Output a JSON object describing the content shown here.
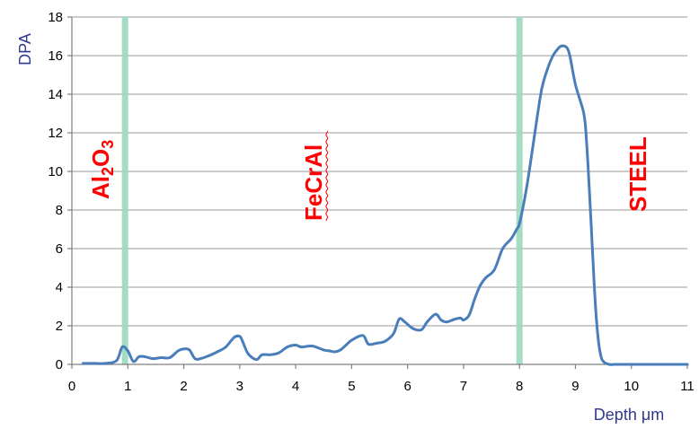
{
  "chart_data": {
    "type": "line",
    "xlabel": "Depth μm",
    "ylabel": "DPA",
    "xlim": [
      0,
      11
    ],
    "ylim": [
      0,
      18
    ],
    "x_ticks": [
      0,
      1,
      2,
      3,
      4,
      5,
      6,
      7,
      8,
      9,
      10,
      11
    ],
    "y_ticks": [
      0,
      2,
      4,
      6,
      8,
      10,
      12,
      14,
      16,
      18
    ],
    "grid": "horizontal",
    "line_color": "#4a7ebb",
    "separator_color": "#9fdcc0",
    "region_label_color": "#ff0000",
    "region_boundaries": [
      0.95,
      8.0
    ],
    "region_labels": [
      {
        "text": "Al",
        "sub": "2",
        "text2": "O",
        "sub2": "3",
        "x": 0.5
      },
      {
        "text": "FeCrAl",
        "x": 4.3
      },
      {
        "text": "STEEL",
        "x": 10.1
      }
    ],
    "series": [
      {
        "x": [
          0.2,
          0.4,
          0.6,
          0.8,
          0.9,
          1.0,
          1.1,
          1.2,
          1.3,
          1.45,
          1.6,
          1.75,
          1.9,
          2.0,
          2.1,
          2.2,
          2.3,
          2.45,
          2.6,
          2.75,
          2.9,
          3.0,
          3.05,
          3.15,
          3.3,
          3.4,
          3.55,
          3.7,
          3.85,
          4.0,
          4.1,
          4.3,
          4.5,
          4.6,
          4.7,
          4.8,
          4.9,
          5.0,
          5.2,
          5.3,
          5.45,
          5.6,
          5.75,
          5.85,
          5.95,
          6.1,
          6.25,
          6.35,
          6.5,
          6.6,
          6.7,
          6.85,
          6.95,
          7.0,
          7.1,
          7.2,
          7.3,
          7.4,
          7.55,
          7.7,
          7.85,
          7.95,
          8.0,
          8.1,
          8.2,
          8.3,
          8.4,
          8.5,
          8.6,
          8.7,
          8.75,
          8.8,
          8.85,
          8.9,
          9.0,
          9.15,
          9.2,
          9.25,
          9.3,
          9.35,
          9.4,
          9.45,
          9.5,
          9.6,
          9.7,
          9.8,
          10.0,
          10.5,
          11.0
        ],
        "y": [
          0.05,
          0.05,
          0.05,
          0.2,
          0.9,
          0.7,
          0.15,
          0.4,
          0.4,
          0.3,
          0.35,
          0.35,
          0.7,
          0.8,
          0.75,
          0.3,
          0.3,
          0.45,
          0.65,
          0.9,
          1.4,
          1.45,
          1.2,
          0.55,
          0.25,
          0.5,
          0.5,
          0.6,
          0.9,
          1.0,
          0.9,
          0.95,
          0.75,
          0.7,
          0.65,
          0.75,
          1.0,
          1.25,
          1.5,
          1.05,
          1.1,
          1.2,
          1.6,
          2.35,
          2.2,
          1.85,
          1.8,
          2.2,
          2.6,
          2.3,
          2.2,
          2.35,
          2.4,
          2.3,
          2.55,
          3.4,
          4.1,
          4.5,
          4.9,
          6.0,
          6.5,
          7.0,
          7.3,
          8.7,
          10.5,
          12.5,
          14.3,
          15.3,
          16.0,
          16.4,
          16.5,
          16.5,
          16.4,
          16.0,
          14.5,
          13.0,
          11.5,
          9.0,
          6.2,
          3.4,
          1.5,
          0.5,
          0.15,
          0.0,
          0.0,
          0.0,
          0.0,
          0.0,
          0.0
        ]
      }
    ]
  }
}
